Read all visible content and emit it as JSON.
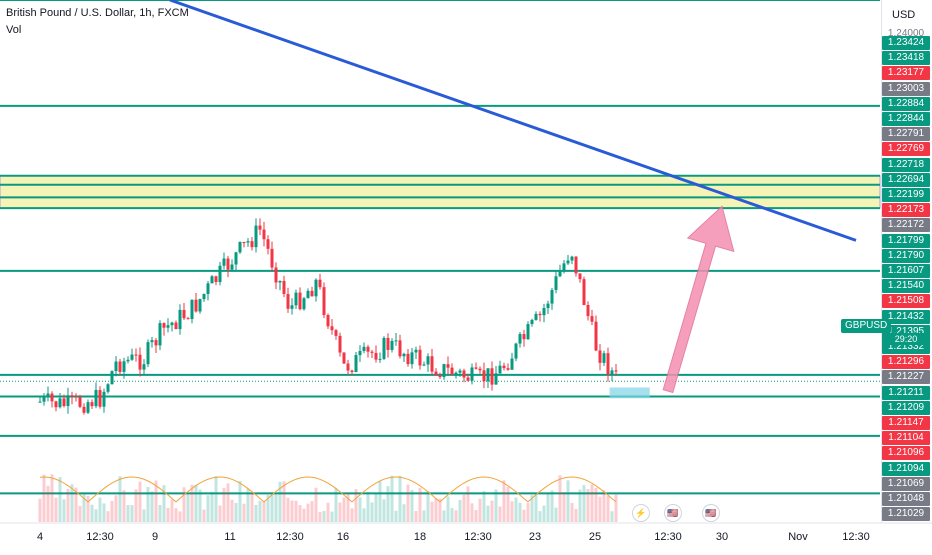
{
  "header": {
    "title": "British Pound / U.S. Dollar, 1h, FXCM",
    "volume_label": "Vol"
  },
  "price_axis": {
    "currency": "USD",
    "top_partial_label": "1.24000",
    "labels": [
      {
        "v": "1.23424",
        "kind": "green"
      },
      {
        "v": "1.23418",
        "kind": "green"
      },
      {
        "v": "1.23177",
        "kind": "red"
      },
      {
        "v": "1.23003",
        "kind": "gray"
      },
      {
        "v": "1.22884",
        "kind": "green"
      },
      {
        "v": "1.22844",
        "kind": "green"
      },
      {
        "v": "1.22791",
        "kind": "gray"
      },
      {
        "v": "1.22769",
        "kind": "red"
      },
      {
        "v": "1.22718",
        "kind": "green"
      },
      {
        "v": "1.22694",
        "kind": "green"
      },
      {
        "v": "1.22199",
        "kind": "green"
      },
      {
        "v": "1.22173",
        "kind": "red"
      },
      {
        "v": "1.22172",
        "kind": "gray"
      },
      {
        "v": "1.21799",
        "kind": "green"
      },
      {
        "v": "1.21790",
        "kind": "green"
      },
      {
        "v": "1.21607",
        "kind": "green"
      },
      {
        "v": "1.21540",
        "kind": "green"
      },
      {
        "v": "1.21508",
        "kind": "red"
      },
      {
        "v": "1.21432",
        "kind": "green"
      },
      {
        "v": "1.21395",
        "kind": "green"
      },
      {
        "v": "1.21332",
        "kind": "green"
      },
      {
        "v": "1.21296",
        "kind": "red"
      },
      {
        "v": "1.21227",
        "kind": "gray"
      },
      {
        "v": "1.21211",
        "kind": "green"
      },
      {
        "v": "1.21209",
        "kind": "green"
      },
      {
        "v": "1.21147",
        "kind": "red"
      },
      {
        "v": "1.21104",
        "kind": "red"
      },
      {
        "v": "1.21096",
        "kind": "red"
      },
      {
        "v": "1.21094",
        "kind": "green"
      },
      {
        "v": "1.21069",
        "kind": "gray"
      },
      {
        "v": "1.21048",
        "kind": "gray"
      },
      {
        "v": "1.21029",
        "kind": "gray"
      }
    ],
    "symbol_badge": "GBPUSD",
    "countdown": "29:20"
  },
  "time_axis": {
    "labels": [
      "4",
      "12:30",
      "9",
      "11",
      "12:30",
      "16",
      "18",
      "12:30",
      "23",
      "25",
      "12:30",
      "30",
      "Nov",
      "12:30"
    ]
  },
  "colors": {
    "up": "#089981",
    "down": "#f23645",
    "trendline": "#2a5bd7",
    "level": "#089981",
    "zone_yellow": "#f5f3b5",
    "zone_border": "#b39ddb",
    "arrow": "#f48fb1",
    "highlight_box": "#7fd3e6",
    "volume_ma": "#f2a33a"
  },
  "chart_data": {
    "type": "candlestick",
    "title": "British Pound / U.S. Dollar, 1h, FXCM",
    "symbol": "GBPUSD",
    "timeframe": "1h",
    "ylim": [
      1.209,
      1.2352
    ],
    "x": [
      "4",
      "12:30",
      "9",
      "11",
      "12:30",
      "16",
      "18",
      "12:30",
      "23",
      "25",
      "12:30",
      "30",
      "Nov",
      "12:30"
    ],
    "close_path": [
      {
        "x": 0,
        "y": 1.2128
      },
      {
        "x": 0.5,
        "y": 1.2126
      },
      {
        "x": 1,
        "y": 1.213
      },
      {
        "x": 1.3,
        "y": 1.215
      },
      {
        "x": 1.8,
        "y": 1.2152
      },
      {
        "x": 2.1,
        "y": 1.2168
      },
      {
        "x": 2.5,
        "y": 1.218
      },
      {
        "x": 3,
        "y": 1.2206
      },
      {
        "x": 3.5,
        "y": 1.2224
      },
      {
        "x": 4,
        "y": 1.218
      },
      {
        "x": 4.5,
        "y": 1.2195
      },
      {
        "x": 5,
        "y": 1.2147
      },
      {
        "x": 5.6,
        "y": 1.216
      },
      {
        "x": 6.2,
        "y": 1.2148
      },
      {
        "x": 7,
        "y": 1.214
      },
      {
        "x": 7.4,
        "y": 1.2146
      },
      {
        "x": 8.1,
        "y": 1.2176
      },
      {
        "x": 8.6,
        "y": 1.2214
      },
      {
        "x": 9,
        "y": 1.216
      },
      {
        "x": 9.3,
        "y": 1.214
      }
    ],
    "horizontal_levels": [
      1.2352,
      1.2293,
      1.2254,
      1.2249,
      1.2242,
      1.2236,
      1.2201,
      1.2143,
      1.2131,
      1.2109,
      1.2077
    ],
    "support_resistance_zone": [
      1.2236,
      1.2254
    ],
    "trendline": {
      "from": {
        "x": 2.2,
        "y": 1.2352
      },
      "to": {
        "x": 13.5,
        "y": 1.2218
      }
    },
    "projection_arrow": {
      "from": {
        "x": 10.0,
        "y": 1.2134
      },
      "to": {
        "x": 11.0,
        "y": 1.2237
      }
    },
    "highlight_box": {
      "x0": 9.2,
      "x1": 9.75,
      "y0": 1.2136,
      "y1": 1.213
    },
    "last_price": 1.21395,
    "volume": {
      "label": "Vol",
      "ma_color": "#f2a33a"
    }
  }
}
